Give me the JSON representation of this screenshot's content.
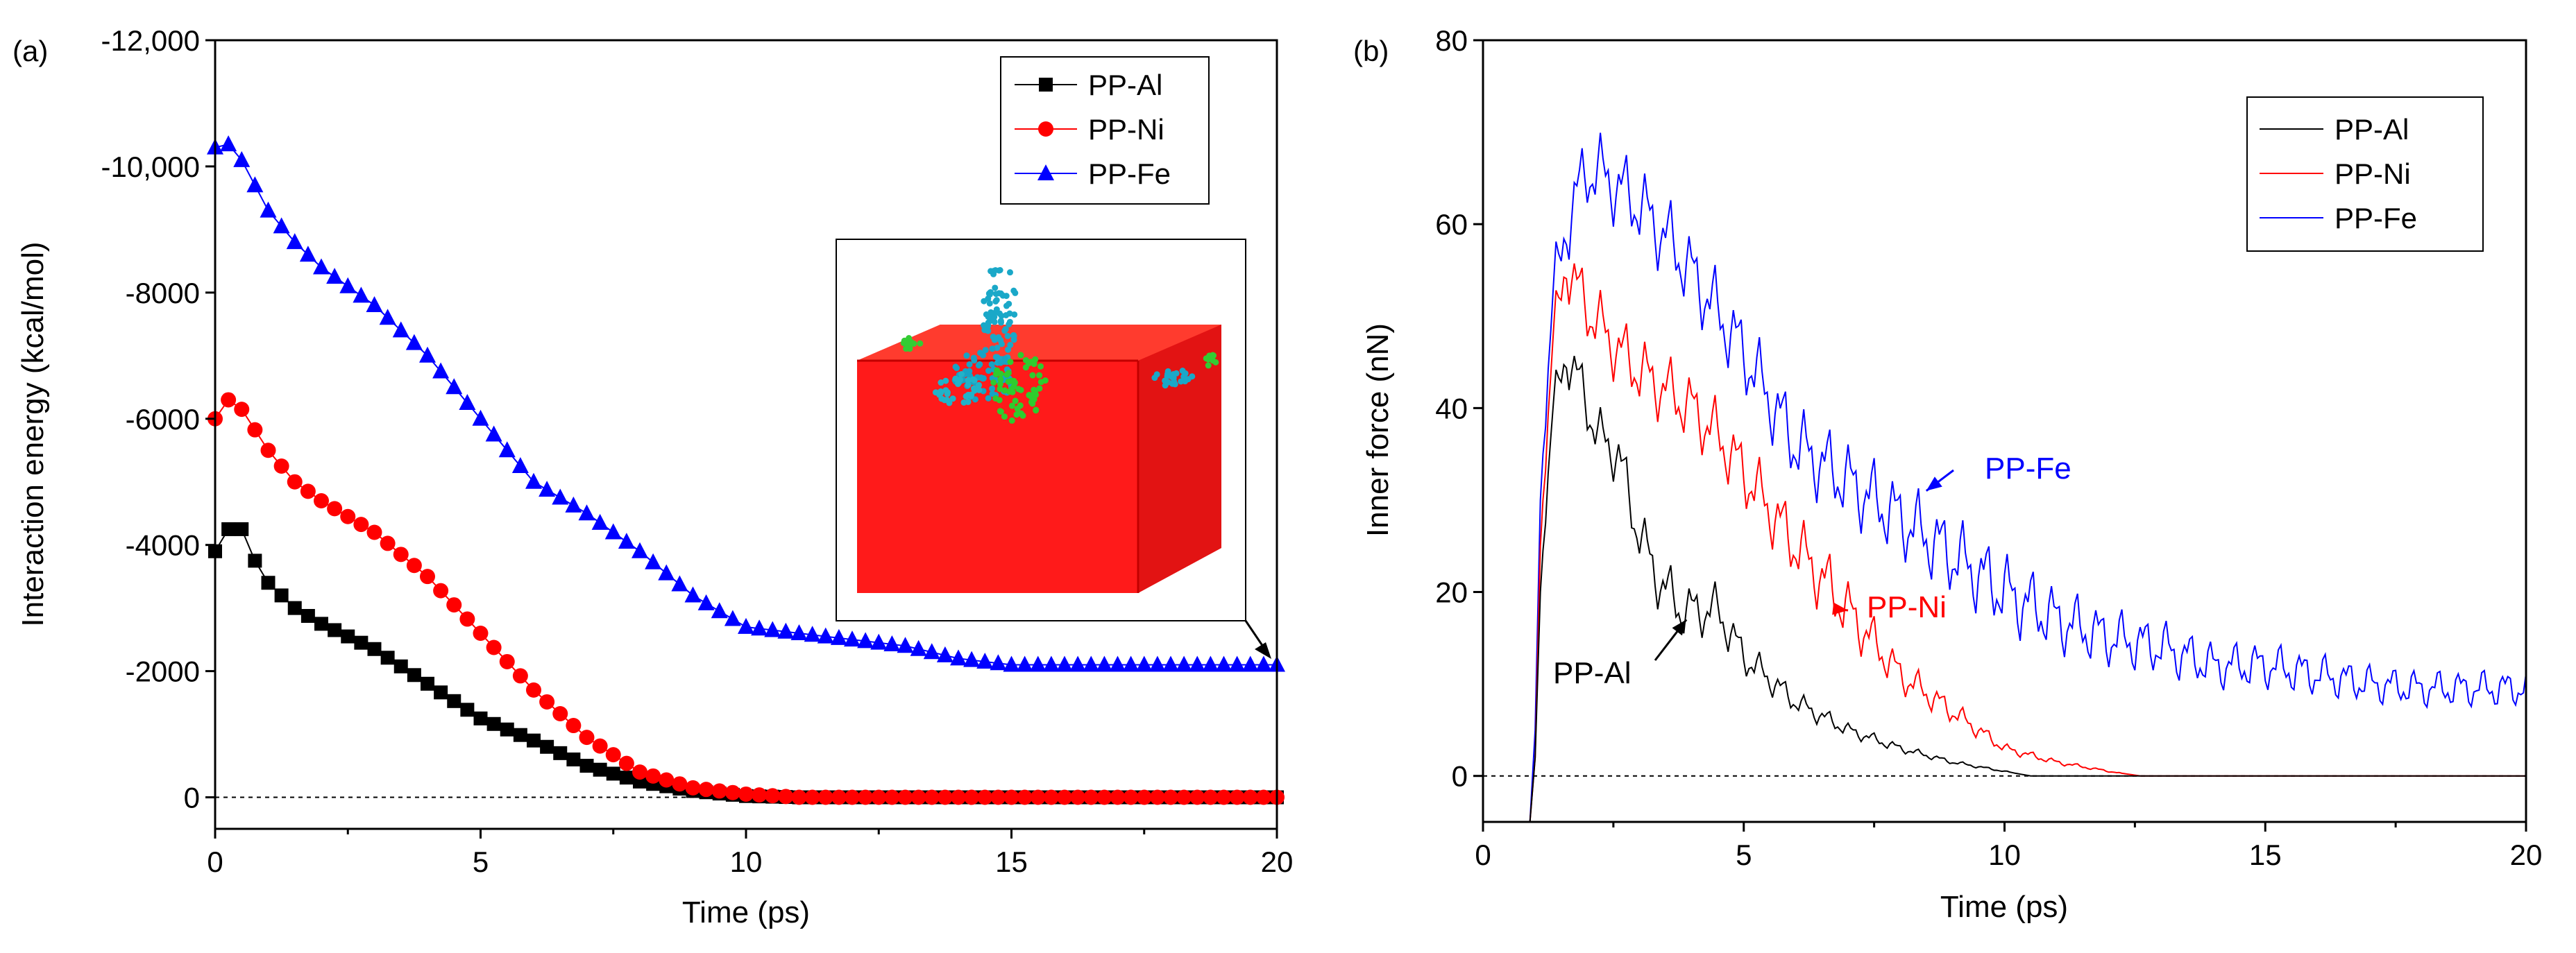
{
  "colors": {
    "al": "#000000",
    "ni": "#ff0000",
    "fe": "#0000ff"
  },
  "chart_data": [
    {
      "type": "scatter",
      "panel_label": "(a)",
      "title": "",
      "xlabel": "Time (ps)",
      "ylabel": "Interaction energy (kcal/mol)",
      "xlim": [
        0,
        20
      ],
      "ylim": [
        500,
        -12000
      ],
      "xticks": [
        0,
        5,
        10,
        15,
        20
      ],
      "xtick_labels": [
        "0",
        "5",
        "10",
        "15",
        "20"
      ],
      "yticks": [
        0,
        -2000,
        -4000,
        -6000,
        -8000,
        -10000,
        -12000
      ],
      "ytick_labels": [
        "0",
        "-2000",
        "-4000",
        "-6000",
        "-8000",
        "-10,000",
        "-12,000"
      ],
      "reference_line": 0,
      "legend_position": "top-right",
      "series": [
        {
          "name": "PP-Al",
          "marker": "square",
          "x": [
            0,
            0.25,
            0.5,
            0.75,
            1,
            1.5,
            2,
            3,
            4,
            5,
            6,
            7,
            8,
            9,
            10,
            11,
            12,
            13,
            14,
            15,
            16,
            17,
            18,
            19,
            20
          ],
          "y": [
            -3900,
            -4250,
            -4250,
            -3750,
            -3400,
            -3000,
            -2750,
            -2350,
            -1800,
            -1250,
            -900,
            -500,
            -250,
            -100,
            -20,
            0,
            0,
            0,
            0,
            0,
            0,
            0,
            0,
            0,
            0
          ]
        },
        {
          "name": "PP-Ni",
          "marker": "circle",
          "x": [
            0,
            0.25,
            0.5,
            1,
            1.5,
            2,
            3,
            4,
            5,
            6,
            7,
            8,
            9,
            10,
            11,
            12,
            13,
            14,
            15,
            16,
            17,
            18,
            19,
            20
          ],
          "y": [
            -6000,
            -6300,
            -6150,
            -5500,
            -5000,
            -4700,
            -4200,
            -3500,
            -2600,
            -1700,
            -950,
            -400,
            -150,
            -50,
            0,
            0,
            0,
            0,
            0,
            0,
            0,
            0,
            0,
            0
          ]
        },
        {
          "name": "PP-Fe",
          "marker": "triangle",
          "x": [
            0,
            0.25,
            0.5,
            1,
            1.5,
            2,
            3,
            4,
            5,
            6,
            7,
            8,
            9,
            10,
            11,
            12,
            13,
            14,
            15,
            16,
            17,
            18,
            19,
            20
          ],
          "y": [
            -10300,
            -10350,
            -10100,
            -9300,
            -8800,
            -8400,
            -7800,
            -7000,
            -6000,
            -5000,
            -4500,
            -3900,
            -3200,
            -2700,
            -2600,
            -2500,
            -2400,
            -2200,
            -2100,
            -2100,
            -2100,
            -2100,
            -2100,
            -2100
          ]
        }
      ],
      "inset": {
        "description_visible": false
      }
    },
    {
      "type": "line",
      "panel_label": "(b)",
      "title": "",
      "xlabel": "Time (ps)",
      "ylabel": "Inner force (nN)",
      "xlim": [
        0,
        20
      ],
      "ylim": [
        -5,
        80
      ],
      "xticks": [
        0,
        5,
        10,
        15,
        20
      ],
      "xtick_labels": [
        "0",
        "5",
        "10",
        "15",
        "20"
      ],
      "yticks": [
        0,
        20,
        40,
        60,
        80
      ],
      "ytick_labels": [
        "0",
        "20",
        "40",
        "60",
        "80"
      ],
      "reference_line": 0,
      "legend_position": "top-right",
      "annotations": [
        {
          "text": "PP-Fe",
          "series": "PP-Fe",
          "points_to": [
            8.5,
            31
          ]
        },
        {
          "text": "PP-Ni",
          "series": "PP-Ni",
          "points_to": [
            7,
            18
          ]
        },
        {
          "text": "PP-Al",
          "series": "PP-Al",
          "points_to": [
            3.9,
            17
          ]
        }
      ],
      "series": [
        {
          "name": "PP-Al",
          "x": [
            0.9,
            1.0,
            1.1,
            1.3,
            1.6,
            1.9,
            2.2,
            2.6,
            2.9,
            3.3,
            3.8,
            4.5,
            5.0,
            6.0,
            7.0,
            8.0,
            9.0,
            10.0,
            10.5,
            11.0,
            20.0
          ],
          "y": [
            -5,
            2,
            20,
            38,
            46,
            42,
            37,
            35,
            28,
            22,
            18,
            18,
            13,
            8,
            5,
            3,
            1.5,
            0.5,
            0,
            0,
            0
          ]
        },
        {
          "name": "PP-Ni",
          "x": [
            0.9,
            1.0,
            1.1,
            1.3,
            1.6,
            1.8,
            2.1,
            2.5,
            3.0,
            3.5,
            4.0,
            4.5,
            5.0,
            6.0,
            7.0,
            8.0,
            9.0,
            10.0,
            11.0,
            12.0,
            12.6,
            20.0
          ],
          "y": [
            -5,
            2,
            25,
            45,
            56,
            53,
            50,
            47,
            44,
            42,
            40,
            37,
            33,
            25,
            18,
            11,
            7,
            3,
            1.5,
            0.5,
            0,
            0
          ]
        },
        {
          "name": "PP-Fe",
          "x": [
            0.9,
            1.0,
            1.1,
            1.3,
            1.6,
            2.0,
            2.4,
            3.0,
            3.6,
            4.2,
            5.0,
            6.0,
            7.0,
            8.0,
            9.0,
            10.0,
            11.0,
            12.0,
            13.0,
            14.0,
            15.0,
            16.0,
            17.0,
            18.0,
            19.0,
            20.0
          ],
          "y": [
            -5,
            5,
            30,
            50,
            60,
            66,
            65,
            62,
            58,
            53,
            46,
            36,
            32,
            28,
            24,
            20,
            17,
            15,
            14,
            12,
            12,
            11,
            10,
            9.5,
            9.5,
            9.5
          ]
        }
      ]
    }
  ]
}
